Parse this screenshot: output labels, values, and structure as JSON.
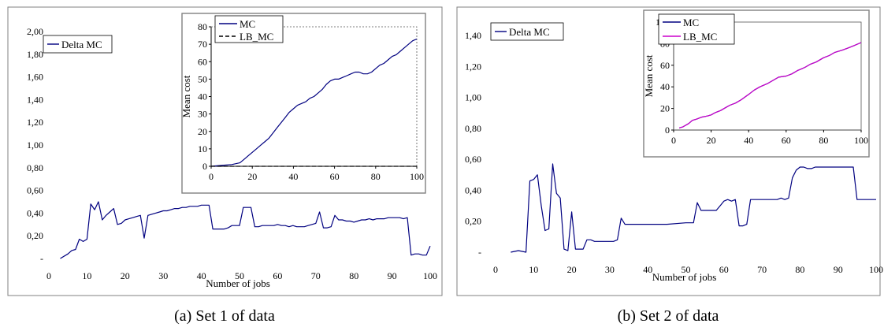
{
  "colors": {
    "navy": "#000080",
    "magenta": "#cc00cc",
    "black": "#000000",
    "frame": "#808080"
  },
  "panels": [
    {
      "caption": "(a) Set 1 of data",
      "chart_data": {
        "type": "line",
        "xlabel": "Number of jobs",
        "ylabel": "",
        "xlim": [
          0,
          100
        ],
        "ylim": [
          0,
          2.0
        ],
        "xticks": [
          "0",
          "10",
          "20",
          "30",
          "40",
          "50",
          "60",
          "70",
          "80",
          "90",
          "100"
        ],
        "yticks": [
          "-",
          "0,20",
          "0,40",
          "0,60",
          "0,80",
          "1,00",
          "1,20",
          "1,40",
          "1,60",
          "1,80",
          "2,00"
        ],
        "legend": "top-left",
        "series": [
          {
            "name": "Delta MC",
            "x": [
              3,
              5,
              6,
              7,
              8,
              9,
              10,
              11,
              12,
              13,
              14,
              15,
              16,
              17,
              18,
              19,
              20,
              21,
              22,
              23,
              24,
              25,
              26,
              27,
              28,
              29,
              30,
              31,
              32,
              33,
              34,
              35,
              36,
              37,
              38,
              39,
              40,
              41,
              42,
              43,
              44,
              45,
              46,
              47,
              48,
              49,
              50,
              51,
              52,
              53,
              54,
              55,
              56,
              57,
              58,
              59,
              60,
              61,
              62,
              63,
              64,
              65,
              66,
              67,
              68,
              69,
              70,
              71,
              72,
              73,
              74,
              75,
              76,
              77,
              78,
              79,
              80,
              81,
              82,
              83,
              84,
              85,
              86,
              87,
              88,
              89,
              90,
              91,
              92,
              93,
              94,
              95,
              96,
              97,
              98,
              99,
              100
            ],
            "y": [
              0,
              0.04,
              0.07,
              0.08,
              0.17,
              0.15,
              0.17,
              0.48,
              0.43,
              0.5,
              0.34,
              0.38,
              0.41,
              0.44,
              0.3,
              0.31,
              0.34,
              0.35,
              0.36,
              0.37,
              0.38,
              0.18,
              0.38,
              0.39,
              0.4,
              0.41,
              0.42,
              0.42,
              0.43,
              0.44,
              0.44,
              0.45,
              0.45,
              0.46,
              0.46,
              0.46,
              0.47,
              0.47,
              0.47,
              0.26,
              0.26,
              0.26,
              0.26,
              0.27,
              0.29,
              0.29,
              0.29,
              0.45,
              0.45,
              0.45,
              0.28,
              0.28,
              0.29,
              0.29,
              0.29,
              0.29,
              0.3,
              0.29,
              0.29,
              0.28,
              0.29,
              0.28,
              0.28,
              0.28,
              0.29,
              0.3,
              0.31,
              0.41,
              0.27,
              0.27,
              0.28,
              0.38,
              0.34,
              0.34,
              0.33,
              0.33,
              0.32,
              0.33,
              0.34,
              0.34,
              0.35,
              0.34,
              0.35,
              0.35,
              0.35,
              0.36,
              0.36,
              0.36,
              0.36,
              0.35,
              0.36,
              0.03,
              0.04,
              0.04,
              0.03,
              0.03,
              0.11
            ]
          }
        ],
        "inset": {
          "type": "line",
          "ylabel": "Mean cost",
          "xlim": [
            0,
            100
          ],
          "ylim": [
            0,
            80
          ],
          "xticks": [
            "0",
            "20",
            "40",
            "60",
            "80",
            "100"
          ],
          "yticks": [
            "0",
            "10",
            "20",
            "30",
            "40",
            "50",
            "60",
            "70",
            "80"
          ],
          "series": [
            {
              "name": "MC",
              "style": "solid",
              "x": [
                0,
                5,
                10,
                14,
                16,
                18,
                20,
                22,
                24,
                26,
                28,
                30,
                32,
                34,
                36,
                38,
                40,
                42,
                44,
                46,
                48,
                50,
                52,
                54,
                56,
                58,
                60,
                62,
                64,
                66,
                68,
                70,
                72,
                74,
                76,
                78,
                80,
                82,
                84,
                86,
                88,
                90,
                92,
                94,
                96,
                98,
                100
              ],
              "y": [
                0,
                0.5,
                1,
                2,
                4,
                6,
                8,
                10,
                12,
                14,
                16,
                19,
                22,
                25,
                28,
                31,
                33,
                35,
                36,
                37,
                39,
                40,
                42,
                44,
                47,
                49,
                50,
                50,
                51,
                52,
                53,
                54,
                54,
                53,
                53,
                54,
                56,
                58,
                59,
                61,
                63,
                64,
                66,
                68,
                70,
                72,
                73
              ]
            },
            {
              "name": "LB_MC",
              "style": "dashed",
              "x": [
                0,
                100
              ],
              "y": [
                0,
                0
              ]
            }
          ]
        }
      }
    },
    {
      "caption": "(b) Set 2 of data",
      "chart_data": {
        "type": "line",
        "xlabel": "Number of jobs",
        "ylabel": "",
        "xlim": [
          0,
          100
        ],
        "ylim": [
          0,
          1.4
        ],
        "xticks": [
          "0",
          "10",
          "20",
          "30",
          "40",
          "50",
          "60",
          "70",
          "80",
          "90",
          "100"
        ],
        "yticks": [
          "-",
          "0,20",
          "0,40",
          "0,60",
          "0,80",
          "1,00",
          "1,20",
          "1,40"
        ],
        "legend": "top-left",
        "series": [
          {
            "name": "Delta MC",
            "x": [
              4,
              6,
              8,
              9,
              10,
              11,
              12,
              13,
              14,
              15,
              16,
              17,
              18,
              19,
              20,
              21,
              22,
              23,
              24,
              25,
              26,
              27,
              28,
              29,
              30,
              31,
              32,
              33,
              34,
              40,
              45,
              50,
              52,
              53,
              54,
              55,
              56,
              57,
              58,
              59,
              60,
              61,
              62,
              63,
              64,
              65,
              66,
              67,
              68,
              69,
              70,
              71,
              72,
              73,
              74,
              75,
              76,
              77,
              78,
              79,
              80,
              81,
              82,
              83,
              84,
              85,
              86,
              87,
              88,
              89,
              90,
              91,
              92,
              93,
              94,
              95,
              96,
              97,
              98,
              99,
              100
            ],
            "y": [
              0,
              0.01,
              0,
              0.46,
              0.47,
              0.5,
              0.3,
              0.14,
              0.15,
              0.57,
              0.38,
              0.35,
              0.02,
              0.01,
              0.26,
              0.02,
              0.02,
              0.02,
              0.08,
              0.08,
              0.07,
              0.07,
              0.07,
              0.07,
              0.07,
              0.07,
              0.08,
              0.22,
              0.18,
              0.18,
              0.18,
              0.19,
              0.19,
              0.32,
              0.27,
              0.27,
              0.27,
              0.27,
              0.27,
              0.3,
              0.33,
              0.34,
              0.33,
              0.34,
              0.17,
              0.17,
              0.18,
              0.34,
              0.34,
              0.34,
              0.34,
              0.34,
              0.34,
              0.34,
              0.34,
              0.35,
              0.34,
              0.35,
              0.48,
              0.53,
              0.55,
              0.55,
              0.54,
              0.54,
              0.55,
              0.55,
              0.55,
              0.55,
              0.55,
              0.55,
              0.55,
              0.55,
              0.55,
              0.55,
              0.55,
              0.34,
              0.34,
              0.34,
              0.34,
              0.34,
              0.34
            ]
          }
        ],
        "inset": {
          "type": "line",
          "ylabel": "Mean cost",
          "xlim": [
            0,
            100
          ],
          "ylim": [
            0,
            100
          ],
          "xticks": [
            "0",
            "20",
            "40",
            "60",
            "80",
            "100"
          ],
          "yticks": [
            "0",
            "20",
            "40",
            "60",
            "80",
            "100"
          ],
          "series": [
            {
              "name": "MC",
              "style": "solid",
              "x": [
                3,
                5,
                8,
                10,
                12,
                15,
                18,
                20,
                22,
                25,
                28,
                30,
                33,
                36,
                40,
                43,
                46,
                50,
                53,
                56,
                60,
                63,
                66,
                70,
                73,
                76,
                80,
                83,
                86,
                90,
                93,
                96,
                100
              ],
              "y": [
                2,
                3,
                6,
                9,
                10,
                12,
                13,
                14,
                16,
                18,
                21,
                23,
                25,
                28,
                33,
                37,
                40,
                43,
                46,
                49,
                50,
                52,
                55,
                58,
                61,
                63,
                67,
                69,
                72,
                74,
                76,
                78,
                81
              ]
            },
            {
              "name": "LB_MC",
              "style": "solid",
              "x": [
                3,
                5,
                8,
                10,
                12,
                15,
                18,
                20,
                22,
                25,
                28,
                30,
                33,
                36,
                40,
                43,
                46,
                50,
                53,
                56,
                60,
                63,
                66,
                70,
                73,
                76,
                80,
                83,
                86,
                90,
                93,
                96,
                100
              ],
              "y": [
                2,
                3,
                6,
                9,
                10,
                12,
                13,
                14,
                16,
                18,
                21,
                23,
                25,
                28,
                33,
                37,
                40,
                43,
                46,
                49,
                50,
                52,
                55,
                58,
                61,
                63,
                67,
                69,
                72,
                74,
                76,
                78,
                81
              ]
            }
          ]
        }
      }
    }
  ]
}
